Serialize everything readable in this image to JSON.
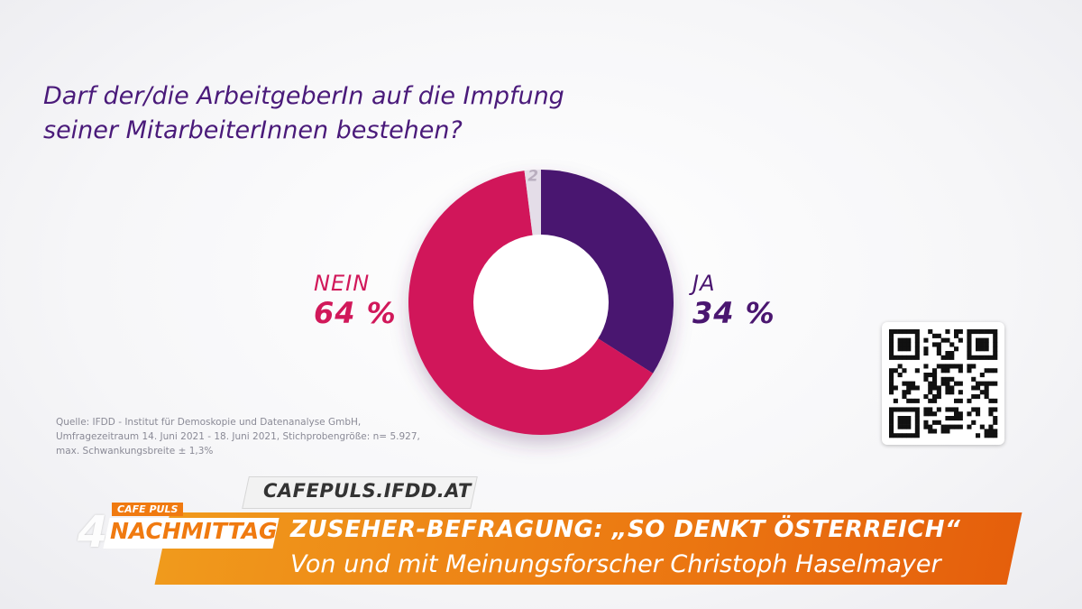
{
  "question": {
    "line1": "Darf der/die ArbeitgeberIn auf die Impfung",
    "line2": "seiner MitarbeiterInnen bestehen?"
  },
  "chart_data": {
    "type": "pie",
    "style": "donut",
    "slices": [
      {
        "label": "JA",
        "value": 34,
        "display": "34 %",
        "color": "#4a1670"
      },
      {
        "label": "NEIN",
        "value": 64,
        "display": "64 %",
        "color": "#d1185a"
      },
      {
        "label": "",
        "value": 2,
        "display": "2",
        "color": "#e4dde8"
      }
    ],
    "legend": "none"
  },
  "source": {
    "line1": "Quelle: IFDD - Institut für Demoskopie und Datenanalyse GmbH,",
    "line2": "Umfragezeitraum 14. Juni 2021 - 18. Juni 2021, Stichprobengröße: n= 5.927,",
    "line3": "max. Schwankungsbreite ± 1,3%"
  },
  "qr_icon": "qr-code-icon",
  "url": "CAFEPULS.IFDD.AT",
  "banner": {
    "show_top": "CAFE PULS",
    "show_name": "NACHMITTAG",
    "channel": "4",
    "line1": "ZUSEHER-BEFRAGUNG: „SO DENKT ÖSTERREICH“",
    "line2": "Von und mit Meinungsforscher Christoph Haselmayer"
  },
  "colors": {
    "accent_purple": "#4a1670",
    "accent_pink": "#d1185a",
    "banner_orange": "#ec7a12"
  }
}
